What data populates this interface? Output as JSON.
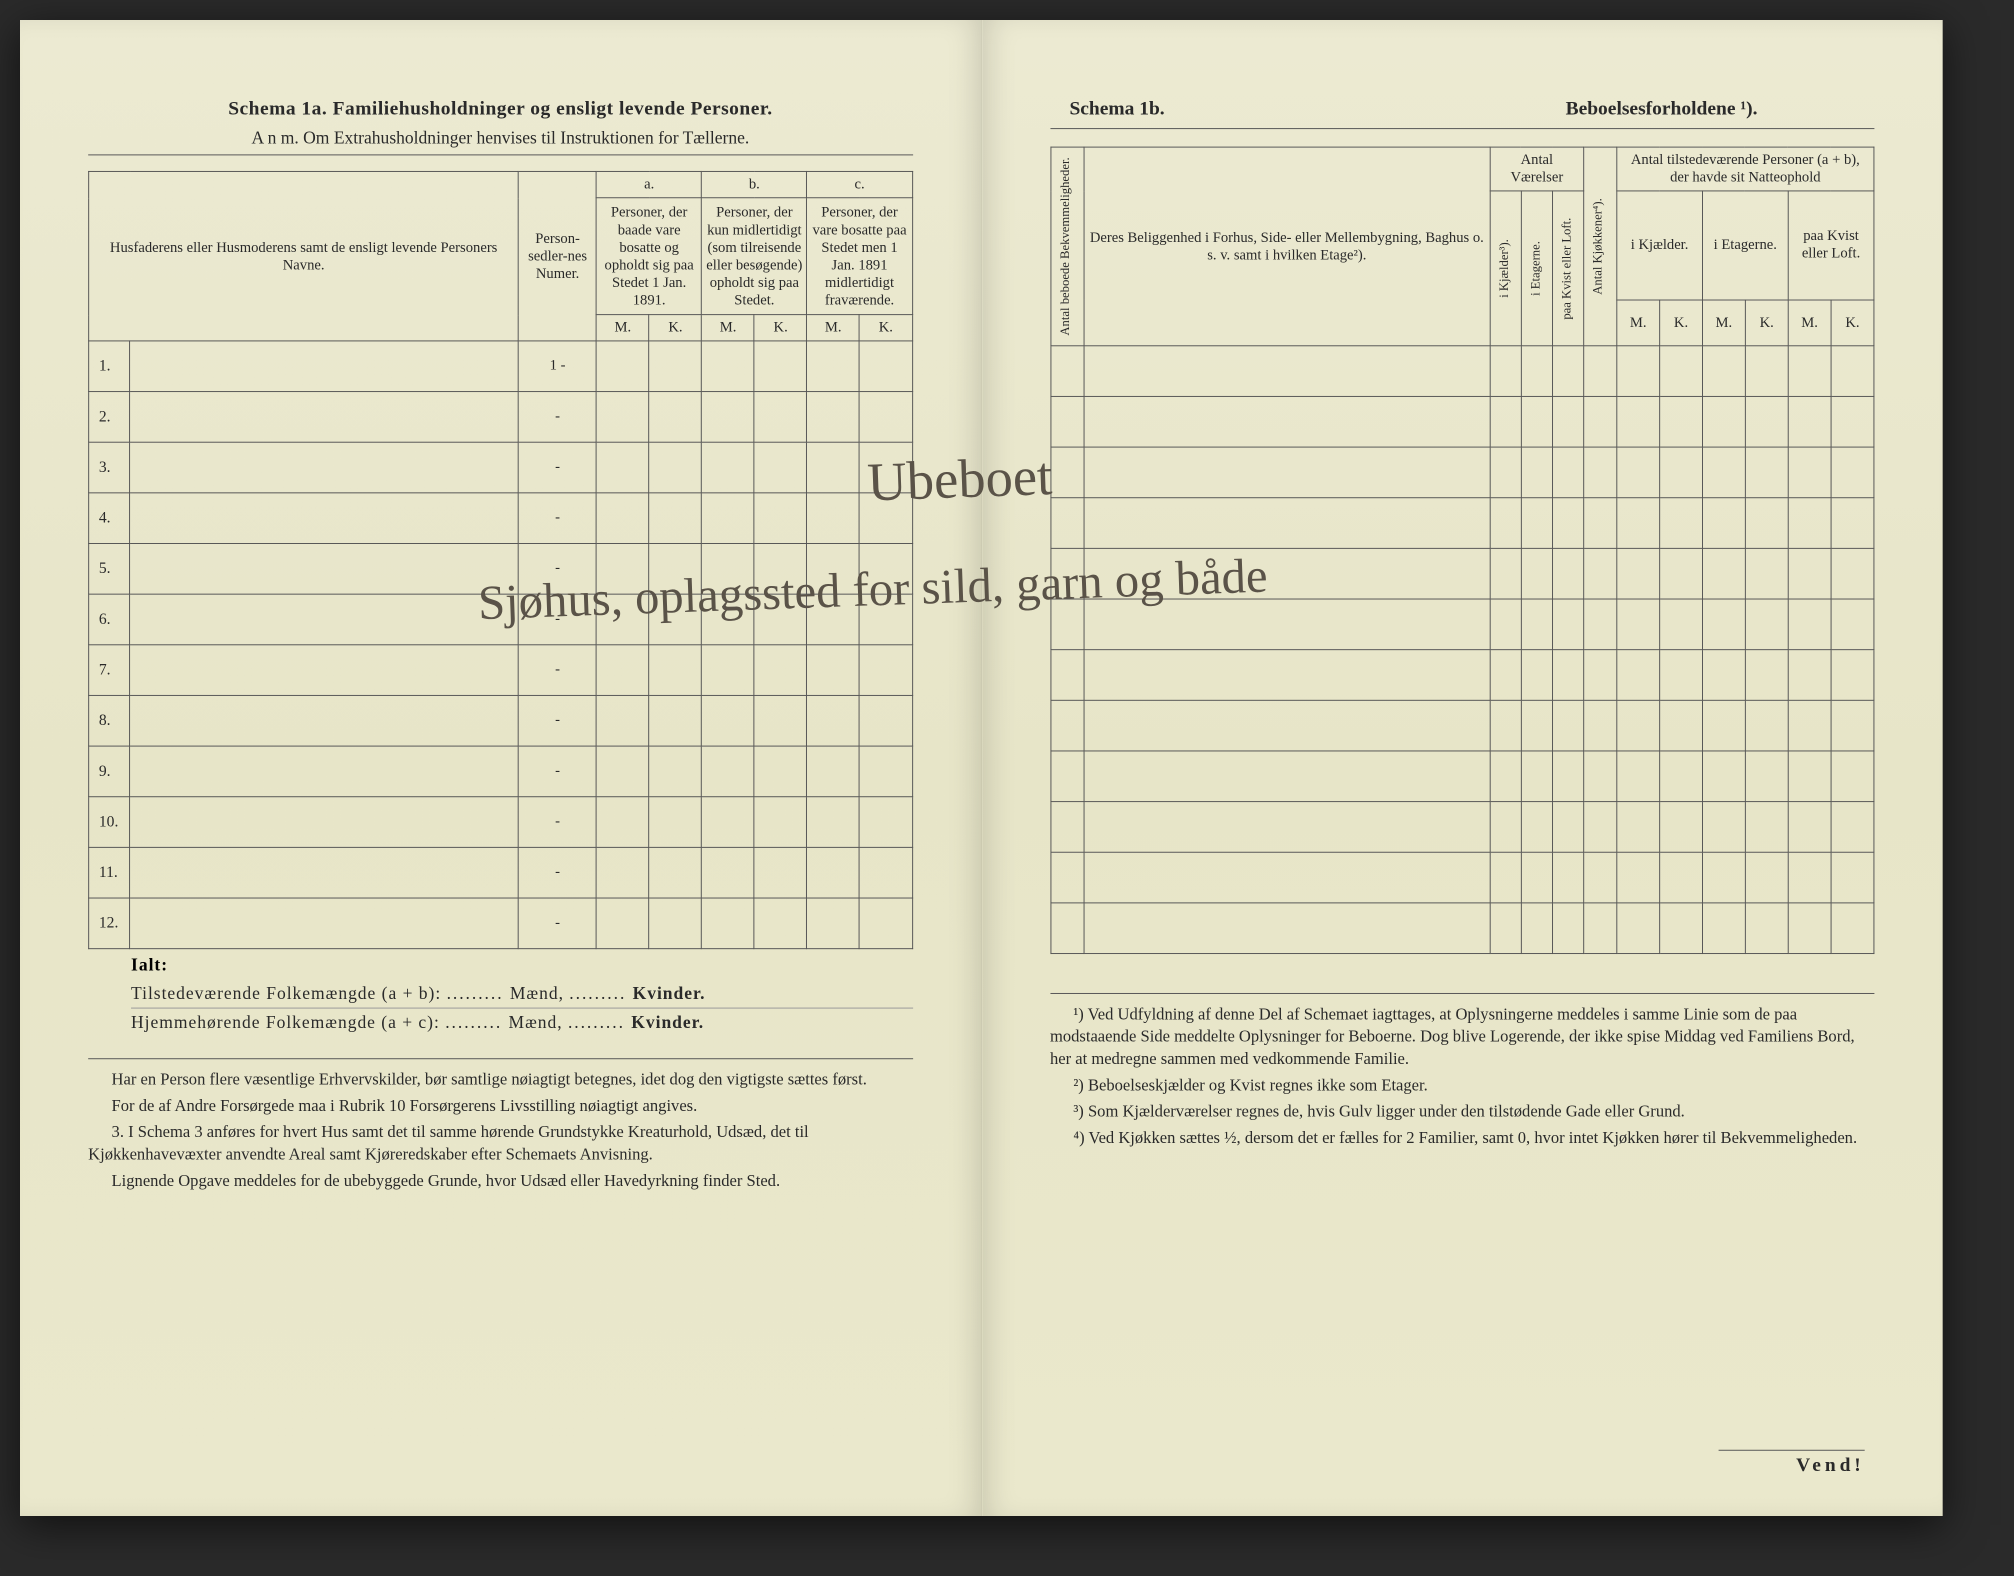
{
  "left": {
    "schema_label": "Schema 1a.",
    "schema_title": "Familiehusholdninger og ensligt levende Personer.",
    "anm": "A n m.  Om Extrahusholdninger henvises til Instruktionen for Tællerne.",
    "columns": {
      "name_header": "Husfaderens eller Husmoderens samt de ensligt levende Personers Navne.",
      "personsedler": "Person-sedler-nes Numer.",
      "a_label": "a.",
      "a_text": "Personer, der baade vare bosatte og opholdt sig paa Stedet 1 Jan. 1891.",
      "b_label": "b.",
      "b_text": "Personer, der kun midlertidigt (som tilreisende eller besøgende) opholdt sig paa Stedet.",
      "c_label": "c.",
      "c_text": "Personer, der vare bosatte paa Stedet men 1 Jan. 1891 midlertidigt fraværende.",
      "m": "M.",
      "k": "K."
    },
    "rows": [
      "1.",
      "2.",
      "3.",
      "4.",
      "5.",
      "6.",
      "7.",
      "8.",
      "9.",
      "10.",
      "11.",
      "12."
    ],
    "personsedler_vals": [
      "1 -",
      "-",
      "-",
      "-",
      "-",
      "-",
      "-",
      "-",
      "-",
      "-",
      "-",
      "-"
    ],
    "ialt": "Ialt:",
    "summary1_a": "Tilstedeværende Folkemængde (a + b):",
    "summary1_b": "Mænd,",
    "summary1_c": "Kvinder.",
    "summary2_a": "Hjemmehørende Folkemængde (a + c):",
    "summary2_b": "Mænd,",
    "summary2_c": "Kvinder.",
    "footnotes": [
      "Har en Person flere væsentlige Erhvervskilder, bør samtlige nøiagtigt betegnes, idet dog den vigtigste sættes først.",
      "For de af Andre Forsørgede maa i Rubrik 10 Forsørgerens Livsstilling nøiagtigt angives.",
      "3. I Schema 3 anføres for hvert Hus samt det til samme hørende Grundstykke Kreaturhold, Udsæd, det til Kjøkkenhavevæxter anvendte Areal samt Kjøreredskaber efter Schemaets Anvisning.",
      "Lignende Opgave meddeles for de ubebyggede Grunde, hvor Udsæd eller Havedyrkning finder Sted."
    ]
  },
  "right": {
    "schema_label": "Schema 1b.",
    "schema_title": "Beboelsesforholdene ¹).",
    "columns": {
      "antal_bekv": "Antal beboede Bekvemmeligheder.",
      "beliggenhed": "Deres Beliggenhed i Forhus, Side- eller Mellembygning, Baghus o. s. v. samt i hvilken Etage²).",
      "antal_vaer": "Antal Værelser",
      "i_kjaelder": "i Kjælder³).",
      "i_etagerne": "i Etagerne.",
      "paa_kvist": "paa Kvist eller Loft.",
      "antal_kjok": "Antal Kjøkkener⁴).",
      "tilstede_header": "Antal tilstedeværende Personer (a + b), der havde sit Natteophold",
      "tilst_kjaelder": "i Kjælder.",
      "tilst_etagerne": "i Etagerne.",
      "tilst_kvist": "paa Kvist eller Loft.",
      "m": "M.",
      "k": "K."
    },
    "footnotes": [
      "¹) Ved Udfyldning af denne Del af Schemaet iagttages, at Oplysningerne meddeles i samme Linie som de paa modstaaende Side meddelte Oplysninger for Beboerne. Dog blive Logerende, der ikke spise Middag ved Familiens Bord, her at medregne sammen med vedkommende Familie.",
      "²) Beboelseskjælder og Kvist regnes ikke som Etager.",
      "³) Som Kjælderværelser regnes de, hvis Gulv ligger under den tilstødende Gade eller Grund.",
      "⁴) Ved Kjøkken sættes ½, dersom det er fælles for 2 Familier, samt 0, hvor intet Kjøkken hører til Bekvemmeligheden."
    ],
    "vend": "Vend!"
  },
  "handwriting": {
    "line1": "Ubeboet",
    "line2": "Sjøhus, oplagssted for sild, garn og både"
  },
  "colors": {
    "paper": "#e8e8d0",
    "ink": "#2a2a2a",
    "rule": "#555555",
    "handwriting": "#5a5348"
  }
}
